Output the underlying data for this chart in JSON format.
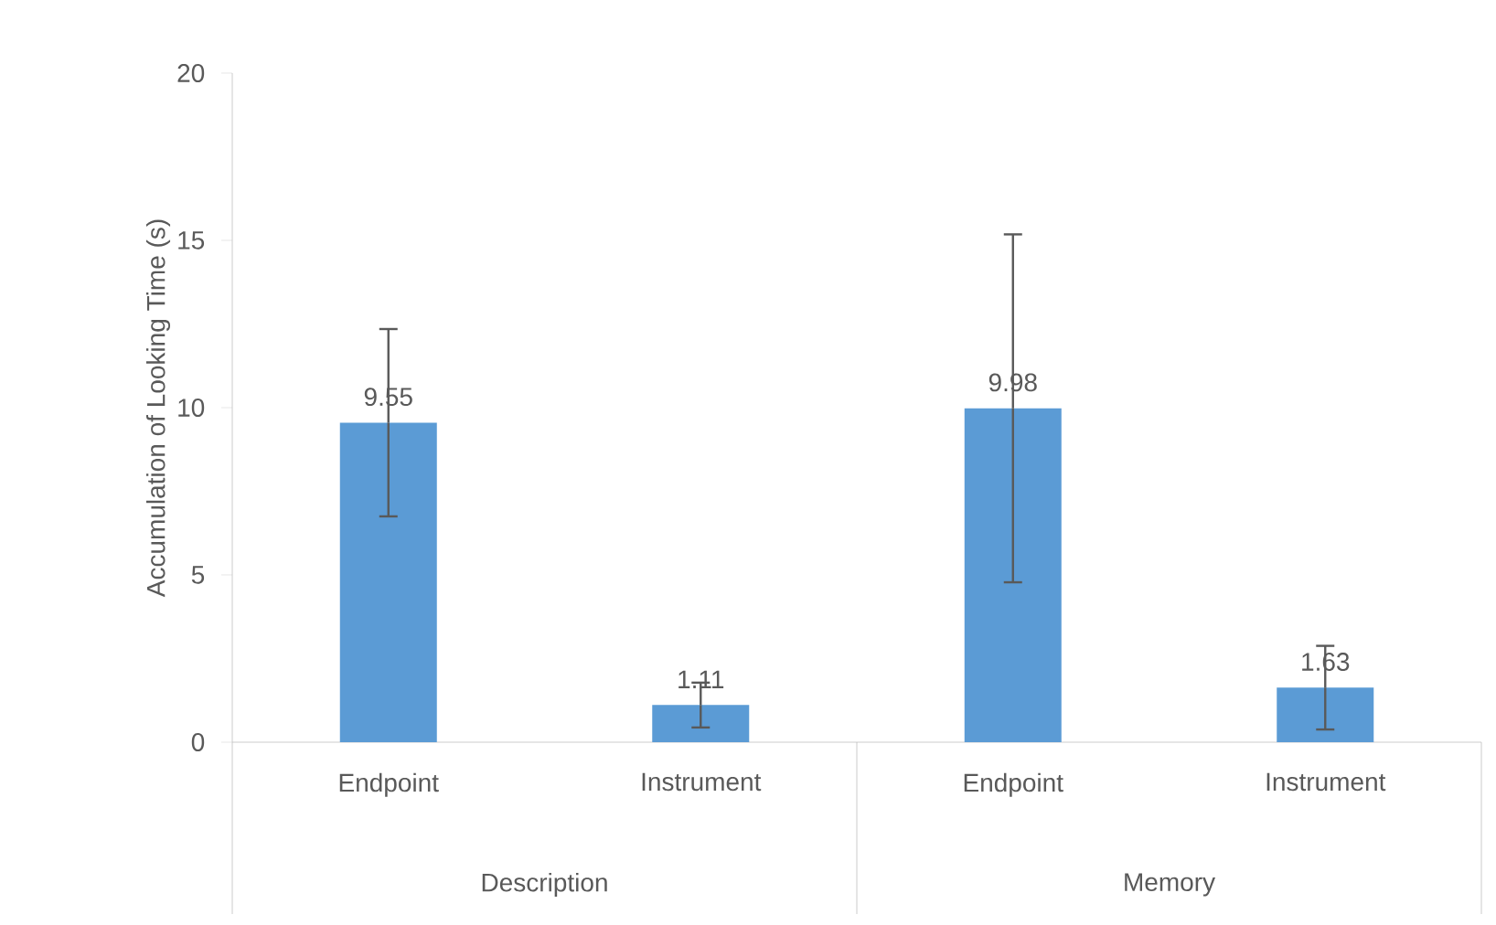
{
  "chart_data": {
    "type": "bar",
    "ylabel": "Accumulation of Looking Time (s)",
    "categories": [
      "Endpoint",
      "Instrument",
      "Endpoint",
      "Instrument"
    ],
    "values": [
      9.55,
      1.11,
      9.98,
      1.63
    ],
    "errors": [
      2.8,
      0.67,
      5.2,
      1.25
    ],
    "color": "#5b9bd5",
    "ylim": [
      0,
      20
    ],
    "yticks": [
      0,
      5,
      10,
      15,
      20
    ],
    "data_labels": true,
    "grid": false,
    "annotations": [
      "Description",
      "Memory"
    ]
  }
}
